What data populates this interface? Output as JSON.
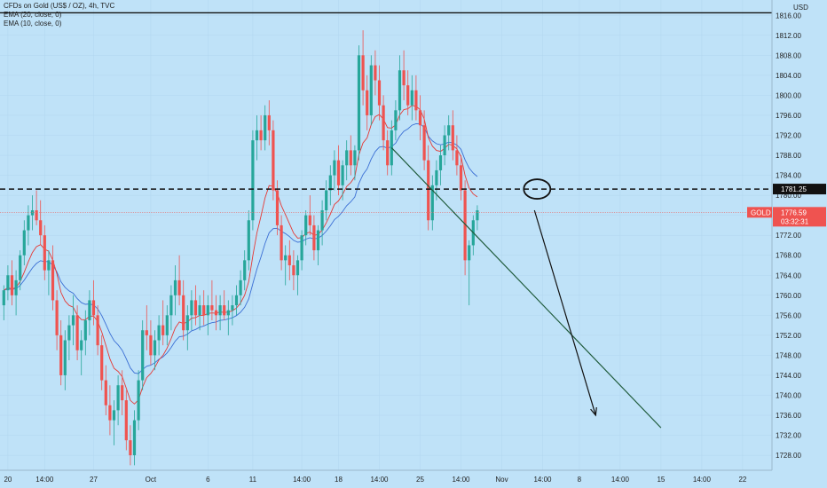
{
  "legend": {
    "symbol": "CFDs on Gold (US$ / OZ), 4h, TVC",
    "ema20": "EMA (20, close, 0)",
    "ema10": "EMA (10, close, 0)"
  },
  "chart_data": {
    "type": "candlestick",
    "title": "CFDs on Gold (US$ / OZ), 4h, TVC",
    "currency": "USD",
    "y_range": [
      1725,
      1818
    ],
    "y_ticks": [
      1728,
      1732,
      1736,
      1740,
      1744,
      1748,
      1752,
      1756,
      1760,
      1764,
      1768,
      1772,
      1776,
      1780,
      1784,
      1788,
      1792,
      1796,
      1800,
      1804,
      1808,
      1812,
      1816
    ],
    "x_ticks": [
      "20",
      "14:00",
      "27",
      "Oct",
      "6",
      "11",
      "14:00",
      "18",
      "14:00",
      "25",
      "14:00",
      "Nov",
      "14:00",
      "8",
      "14:00",
      "15",
      "14:00",
      "22"
    ],
    "colors": {
      "up": "#26a69a",
      "down": "#ef5350",
      "ema20": "#3b6fd4",
      "ema10": "#e53935",
      "background": "#bfe2f8"
    },
    "current_price": {
      "symbol": "GOLD",
      "value": "1776.59",
      "countdown": "03:32:31"
    },
    "resistance": {
      "value": "1781.25"
    },
    "top_line": {
      "value": 1816.5
    },
    "trendline": {
      "from": {
        "bar": 95,
        "price": 1789.5
      },
      "to": {
        "bar": 161,
        "price": 1733.5
      }
    },
    "projection_arrow": {
      "from": {
        "bar": 130,
        "price": 1777
      },
      "to": {
        "bar": 145,
        "price": 1736
      }
    },
    "highlight_circle": {
      "bar": 130,
      "price": 1781.25
    },
    "candles": [
      [
        1758,
        1762,
        1755,
        1761
      ],
      [
        1761,
        1766,
        1759,
        1764
      ],
      [
        1764,
        1767,
        1758,
        1760
      ],
      [
        1760,
        1765,
        1756,
        1763
      ],
      [
        1763,
        1769,
        1761,
        1768
      ],
      [
        1768,
        1775,
        1766,
        1773
      ],
      [
        1773,
        1778,
        1770,
        1776
      ],
      [
        1776,
        1780,
        1773,
        1777
      ],
      [
        1777,
        1781,
        1774,
        1775
      ],
      [
        1775,
        1779,
        1770,
        1772
      ],
      [
        1772,
        1774,
        1763,
        1765
      ],
      [
        1765,
        1769,
        1760,
        1767
      ],
      [
        1767,
        1770,
        1757,
        1759
      ],
      [
        1759,
        1761,
        1749,
        1752
      ],
      [
        1752,
        1755,
        1742,
        1744
      ],
      [
        1744,
        1753,
        1741,
        1751
      ],
      [
        1751,
        1756,
        1747,
        1754
      ],
      [
        1754,
        1760,
        1750,
        1756
      ],
      [
        1756,
        1758,
        1747,
        1749
      ],
      [
        1749,
        1753,
        1744,
        1751
      ],
      [
        1751,
        1757,
        1748,
        1755
      ],
      [
        1755,
        1761,
        1752,
        1759
      ],
      [
        1759,
        1763,
        1754,
        1756
      ],
      [
        1756,
        1758,
        1748,
        1750
      ],
      [
        1750,
        1752,
        1741,
        1743
      ],
      [
        1743,
        1746,
        1736,
        1738
      ],
      [
        1738,
        1742,
        1732,
        1735
      ],
      [
        1735,
        1739,
        1730,
        1737
      ],
      [
        1737,
        1744,
        1734,
        1742
      ],
      [
        1742,
        1745,
        1736,
        1739
      ],
      [
        1739,
        1741,
        1729,
        1731
      ],
      [
        1731,
        1734,
        1726,
        1728
      ],
      [
        1728,
        1737,
        1726,
        1735
      ],
      [
        1735,
        1745,
        1733,
        1743
      ],
      [
        1743,
        1755,
        1741,
        1753
      ],
      [
        1753,
        1758,
        1749,
        1752
      ],
      [
        1752,
        1755,
        1746,
        1748
      ],
      [
        1748,
        1753,
        1745,
        1751
      ],
      [
        1751,
        1756,
        1748,
        1754
      ],
      [
        1754,
        1759,
        1750,
        1752
      ],
      [
        1752,
        1758,
        1750,
        1756
      ],
      [
        1756,
        1762,
        1753,
        1760
      ],
      [
        1760,
        1766,
        1756,
        1763
      ],
      [
        1763,
        1768,
        1758,
        1760
      ],
      [
        1760,
        1763,
        1751,
        1753
      ],
      [
        1753,
        1758,
        1749,
        1756
      ],
      [
        1756,
        1761,
        1753,
        1759
      ],
      [
        1759,
        1762,
        1754,
        1756
      ],
      [
        1756,
        1760,
        1753,
        1758
      ],
      [
        1758,
        1761,
        1754,
        1756
      ],
      [
        1756,
        1760,
        1752,
        1758
      ],
      [
        1758,
        1763,
        1755,
        1757
      ],
      [
        1757,
        1760,
        1753,
        1756
      ],
      [
        1756,
        1760,
        1753,
        1758
      ],
      [
        1758,
        1761,
        1755,
        1756
      ],
      [
        1756,
        1759,
        1752,
        1757
      ],
      [
        1757,
        1760,
        1754,
        1758
      ],
      [
        1758,
        1762,
        1756,
        1760
      ],
      [
        1760,
        1765,
        1758,
        1763
      ],
      [
        1763,
        1769,
        1761,
        1767
      ],
      [
        1767,
        1777,
        1765,
        1775
      ],
      [
        1775,
        1793,
        1773,
        1791
      ],
      [
        1791,
        1796,
        1787,
        1793
      ],
      [
        1793,
        1796,
        1789,
        1791
      ],
      [
        1791,
        1798,
        1789,
        1796
      ],
      [
        1796,
        1799,
        1790,
        1793
      ],
      [
        1793,
        1795,
        1779,
        1781
      ],
      [
        1781,
        1783,
        1772,
        1774
      ],
      [
        1774,
        1776,
        1765,
        1767
      ],
      [
        1767,
        1770,
        1762,
        1768
      ],
      [
        1768,
        1771,
        1763,
        1766
      ],
      [
        1766,
        1769,
        1761,
        1764
      ],
      [
        1764,
        1768,
        1760,
        1767
      ],
      [
        1767,
        1773,
        1765,
        1772
      ],
      [
        1772,
        1777,
        1770,
        1776
      ],
      [
        1776,
        1780,
        1772,
        1774
      ],
      [
        1774,
        1776,
        1767,
        1769
      ],
      [
        1769,
        1774,
        1766,
        1773
      ],
      [
        1773,
        1779,
        1770,
        1777
      ],
      [
        1777,
        1783,
        1775,
        1781
      ],
      [
        1781,
        1786,
        1778,
        1784
      ],
      [
        1784,
        1789,
        1781,
        1787
      ],
      [
        1787,
        1790,
        1780,
        1782
      ],
      [
        1782,
        1787,
        1779,
        1786
      ],
      [
        1786,
        1791,
        1783,
        1789
      ],
      [
        1789,
        1792,
        1784,
        1786
      ],
      [
        1786,
        1790,
        1783,
        1789
      ],
      [
        1789,
        1810,
        1787,
        1808
      ],
      [
        1808,
        1813,
        1798,
        1801
      ],
      [
        1801,
        1804,
        1793,
        1796
      ],
      [
        1796,
        1808,
        1794,
        1806
      ],
      [
        1806,
        1809,
        1800,
        1803
      ],
      [
        1803,
        1806,
        1795,
        1798
      ],
      [
        1798,
        1800,
        1789,
        1791
      ],
      [
        1791,
        1793,
        1784,
        1786
      ],
      [
        1786,
        1795,
        1784,
        1793
      ],
      [
        1793,
        1799,
        1791,
        1797
      ],
      [
        1797,
        1808,
        1795,
        1805
      ],
      [
        1805,
        1809,
        1799,
        1802
      ],
      [
        1802,
        1805,
        1796,
        1798
      ],
      [
        1798,
        1804,
        1795,
        1801
      ],
      [
        1801,
        1804,
        1795,
        1797
      ],
      [
        1797,
        1800,
        1791,
        1794
      ],
      [
        1794,
        1797,
        1785,
        1787
      ],
      [
        1787,
        1790,
        1773,
        1775
      ],
      [
        1775,
        1784,
        1773,
        1782
      ],
      [
        1782,
        1787,
        1779,
        1785
      ],
      [
        1785,
        1790,
        1782,
        1788
      ],
      [
        1788,
        1794,
        1786,
        1792
      ],
      [
        1792,
        1796,
        1789,
        1794
      ],
      [
        1794,
        1797,
        1787,
        1789
      ],
      [
        1789,
        1792,
        1784,
        1786
      ],
      [
        1786,
        1788,
        1779,
        1781
      ],
      [
        1781,
        1783,
        1764,
        1767
      ],
      [
        1767,
        1771,
        1758,
        1770
      ],
      [
        1770,
        1776,
        1768,
        1775
      ],
      [
        1775,
        1778,
        1773,
        1777
      ]
    ]
  },
  "price_tags": {
    "resistance_label": "1781.25",
    "current_symbol": "GOLD",
    "current_value": "1776.59",
    "countdown": "03:32:31"
  },
  "axis": {
    "currency": "USD"
  }
}
